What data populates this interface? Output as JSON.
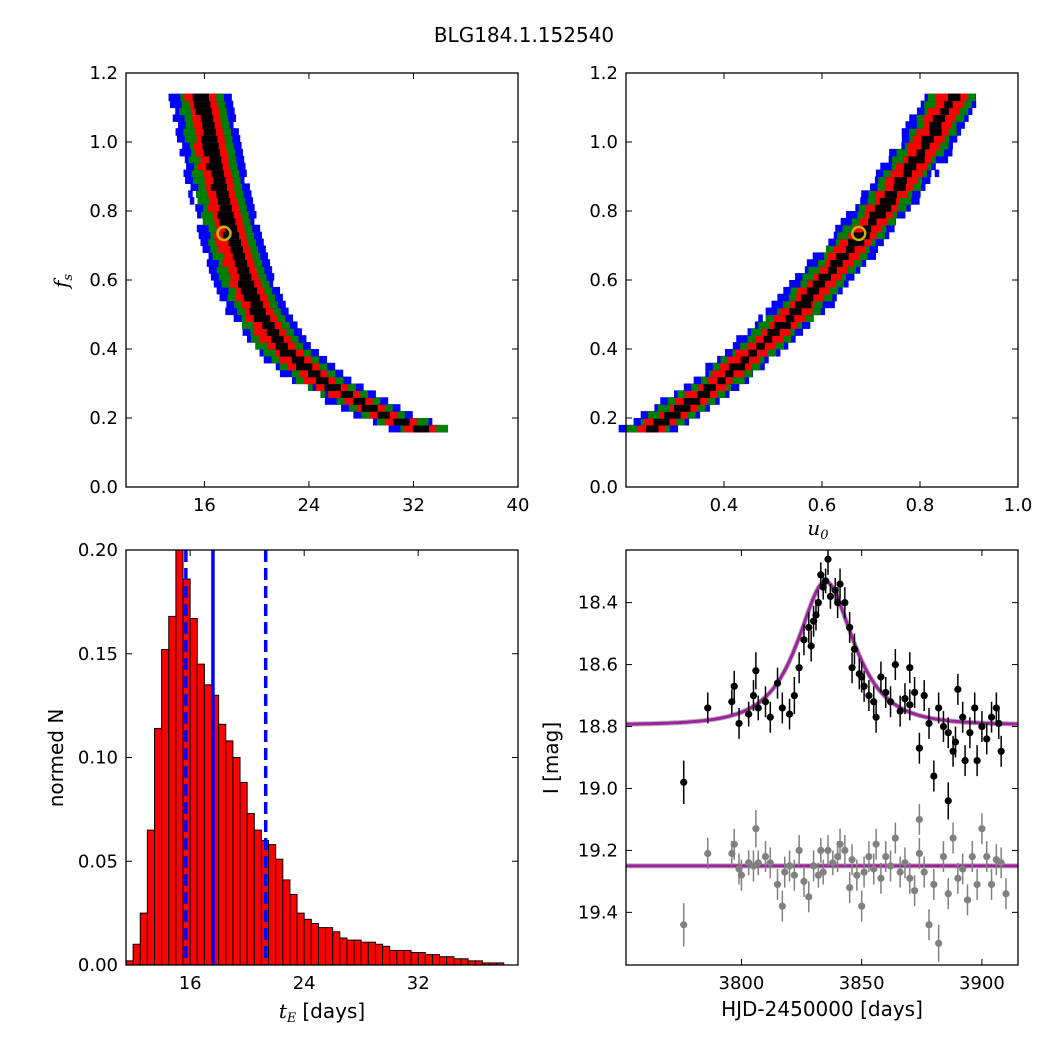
{
  "figure": {
    "title": "BLG184.1.152540"
  },
  "chart_data": [
    {
      "id": "fs_vs_tE",
      "type": "heatmap",
      "xlim": [
        10,
        40
      ],
      "ylim": [
        0.0,
        1.2
      ],
      "xticks": [
        16,
        24,
        32,
        40
      ],
      "yticks": [
        0.0,
        0.2,
        0.4,
        0.6,
        0.8,
        1.0,
        1.2
      ],
      "xlabel": "",
      "ylabel": "f_s",
      "levels": [
        "blue",
        "green",
        "red",
        "black"
      ],
      "colors": {
        "blue": "#0000ff",
        "green": "#008000",
        "red": "#ff0000",
        "black": "#000000",
        "marker": "#c8b400"
      },
      "band": {
        "x_at_y": [
          [
            0.16,
            32.5
          ],
          [
            0.2,
            29.5
          ],
          [
            0.3,
            24.8
          ],
          [
            0.4,
            21.7
          ],
          [
            0.5,
            20.0
          ],
          [
            0.6,
            18.9
          ],
          [
            0.7,
            18.1
          ],
          [
            0.8,
            17.4
          ],
          [
            0.9,
            16.8
          ],
          [
            1.0,
            16.3
          ],
          [
            1.13,
            15.6
          ]
        ],
        "half_width_tE": {
          "black": 0.55,
          "red": 1.2,
          "green": 1.8,
          "blue": 2.4
        },
        "y_range": [
          0.16,
          1.13
        ]
      },
      "best_fit": {
        "x": 17.5,
        "y": 0.735
      }
    },
    {
      "id": "fs_vs_u0",
      "type": "heatmap",
      "xlim": [
        0.2,
        1.0
      ],
      "ylim": [
        0.0,
        1.2
      ],
      "xticks": [
        0.4,
        0.6,
        0.8,
        1.0
      ],
      "yticks": [
        0.0,
        0.2,
        0.4,
        0.6,
        0.8,
        1.0,
        1.2
      ],
      "xlabel": "u_0",
      "ylabel": "",
      "band": {
        "x_at_y": [
          [
            0.16,
            0.245
          ],
          [
            0.2,
            0.29
          ],
          [
            0.3,
            0.39
          ],
          [
            0.4,
            0.47
          ],
          [
            0.5,
            0.545
          ],
          [
            0.6,
            0.605
          ],
          [
            0.7,
            0.665
          ],
          [
            0.8,
            0.72
          ],
          [
            0.9,
            0.77
          ],
          [
            1.0,
            0.815
          ],
          [
            1.13,
            0.865
          ]
        ],
        "half_width_u0": {
          "black": 0.012,
          "red": 0.03,
          "green": 0.045,
          "blue": 0.06
        },
        "y_range": [
          0.16,
          1.13
        ]
      },
      "best_fit": {
        "x": 0.675,
        "y": 0.735
      }
    },
    {
      "id": "tE_histogram",
      "type": "bar",
      "xlim": [
        11.5,
        39
      ],
      "ylim": [
        0.0,
        0.2
      ],
      "xticks": [
        16,
        24,
        32
      ],
      "yticks": [
        0.0,
        0.05,
        0.1,
        0.15,
        0.2
      ],
      "ytick_labels": [
        "0.00",
        "0.05",
        "0.10",
        "0.15",
        "0.20"
      ],
      "xlabel_math": "t_E",
      "xlabel_suffix": "[days]",
      "ylabel": "normed N",
      "bin_start": 11.5,
      "bin_width": 0.5,
      "values": [
        0.002,
        0.01,
        0.025,
        0.065,
        0.114,
        0.152,
        0.168,
        0.2,
        0.186,
        0.167,
        0.145,
        0.135,
        0.13,
        0.116,
        0.108,
        0.1,
        0.088,
        0.073,
        0.065,
        0.06,
        0.058,
        0.051,
        0.041,
        0.034,
        0.025,
        0.022,
        0.02,
        0.018,
        0.018,
        0.016,
        0.013,
        0.012,
        0.012,
        0.011,
        0.011,
        0.01,
        0.009,
        0.007,
        0.007,
        0.007,
        0.006,
        0.006,
        0.005,
        0.005,
        0.004,
        0.004,
        0.003,
        0.003,
        0.002,
        0.002,
        0.001,
        0.001,
        0.001,
        0.0,
        0.0
      ],
      "bar_color": "#ff0000",
      "median_tE": 17.6,
      "interval_tE": [
        15.7,
        21.3
      ],
      "line_color": "#0000ff"
    },
    {
      "id": "light_curve",
      "type": "scatter",
      "xlim": [
        3752,
        3915
      ],
      "ylim": [
        19.57,
        18.23
      ],
      "xticks": [
        3800,
        3850,
        3900
      ],
      "yticks": [
        18.4,
        18.6,
        18.8,
        19.0,
        19.2,
        19.4
      ],
      "xlabel": "HJD-2450000 [days]",
      "ylabel": "I [mag]",
      "model": {
        "t0": 3835,
        "tE": 17.6,
        "u0": 0.675,
        "fs": 0.735,
        "baseline": 18.795,
        "color": "#a020a0"
      },
      "residual_baseline": 19.25,
      "series": [
        {
          "color": "#000000",
          "points": [
            [
              3776,
              18.98,
              0.07
            ],
            [
              3786,
              18.74,
              0.05
            ],
            [
              3796,
              18.72,
              0.04
            ],
            [
              3797,
              18.67,
              0.05
            ],
            [
              3799,
              18.79,
              0.05
            ],
            [
              3803,
              18.76,
              0.04
            ],
            [
              3805,
              18.7,
              0.05
            ],
            [
              3806,
              18.62,
              0.06
            ],
            [
              3807,
              18.74,
              0.04
            ],
            [
              3810,
              18.72,
              0.05
            ],
            [
              3812,
              18.77,
              0.05
            ],
            [
              3815,
              18.66,
              0.05
            ],
            [
              3817,
              18.74,
              0.05
            ],
            [
              3820,
              18.76,
              0.05
            ],
            [
              3822,
              18.7,
              0.06
            ],
            [
              3824,
              18.61,
              0.05
            ],
            [
              3826,
              18.52,
              0.05
            ],
            [
              3828,
              18.48,
              0.05
            ],
            [
              3829,
              18.54,
              0.05
            ],
            [
              3830,
              18.46,
              0.05
            ],
            [
              3831,
              18.44,
              0.05
            ],
            [
              3832,
              18.4,
              0.04
            ],
            [
              3833,
              18.31,
              0.04
            ],
            [
              3834,
              18.35,
              0.04
            ],
            [
              3835,
              18.33,
              0.04
            ],
            [
              3836,
              18.26,
              0.05
            ],
            [
              3837,
              18.38,
              0.04
            ],
            [
              3839,
              18.36,
              0.04
            ],
            [
              3840,
              18.4,
              0.05
            ],
            [
              3841,
              18.34,
              0.05
            ],
            [
              3843,
              18.4,
              0.05
            ],
            [
              3845,
              18.48,
              0.05
            ],
            [
              3846,
              18.61,
              0.05
            ],
            [
              3847,
              18.55,
              0.05
            ],
            [
              3849,
              18.63,
              0.05
            ],
            [
              3850,
              18.64,
              0.05
            ],
            [
              3851,
              18.67,
              0.05
            ],
            [
              3853,
              18.7,
              0.05
            ],
            [
              3855,
              18.72,
              0.05
            ],
            [
              3856,
              18.77,
              0.05
            ],
            [
              3858,
              18.64,
              0.05
            ],
            [
              3860,
              18.69,
              0.05
            ],
            [
              3862,
              18.72,
              0.05
            ],
            [
              3864,
              18.6,
              0.05
            ],
            [
              3866,
              18.75,
              0.05
            ],
            [
              3868,
              18.71,
              0.05
            ],
            [
              3870,
              18.61,
              0.05
            ],
            [
              3872,
              18.69,
              0.05
            ],
            [
              3874,
              18.87,
              0.05
            ],
            [
              3876,
              18.7,
              0.05
            ],
            [
              3878,
              18.79,
              0.05
            ],
            [
              3880,
              18.96,
              0.05
            ],
            [
              3882,
              18.74,
              0.05
            ],
            [
              3884,
              18.8,
              0.05
            ],
            [
              3886,
              18.82,
              0.05
            ],
            [
              3888,
              18.88,
              0.05
            ],
            [
              3889,
              18.85,
              0.05
            ],
            [
              3890,
              18.68,
              0.05
            ],
            [
              3892,
              18.77,
              0.05
            ],
            [
              3893,
              18.91,
              0.05
            ],
            [
              3895,
              18.82,
              0.05
            ],
            [
              3897,
              18.74,
              0.05
            ],
            [
              3898,
              18.91,
              0.05
            ],
            [
              3900,
              18.8,
              0.05
            ],
            [
              3902,
              18.84,
              0.05
            ],
            [
              3904,
              18.77,
              0.05
            ],
            [
              3906,
              18.74,
              0.05
            ],
            [
              3907,
              18.79,
              0.05
            ],
            [
              3908,
              18.88,
              0.05
            ],
            [
              3886,
              19.04,
              0.06
            ],
            [
              3870,
              18.73,
              0.05
            ]
          ]
        },
        {
          "color": "#808080",
          "points": [
            [
              3776,
              19.44,
              0.07
            ],
            [
              3786,
              19.21,
              0.05
            ],
            [
              3796,
              19.21,
              0.04
            ],
            [
              3797,
              19.18,
              0.05
            ],
            [
              3799,
              19.26,
              0.05
            ],
            [
              3800,
              19.28,
              0.05
            ],
            [
              3803,
              19.24,
              0.04
            ],
            [
              3805,
              19.25,
              0.05
            ],
            [
              3806,
              19.13,
              0.06
            ],
            [
              3807,
              19.24,
              0.04
            ],
            [
              3810,
              19.22,
              0.05
            ],
            [
              3812,
              19.24,
              0.05
            ],
            [
              3815,
              19.31,
              0.05
            ],
            [
              3817,
              19.38,
              0.05
            ],
            [
              3818,
              19.27,
              0.05
            ],
            [
              3820,
              19.25,
              0.05
            ],
            [
              3822,
              19.28,
              0.05
            ],
            [
              3824,
              19.2,
              0.05
            ],
            [
              3826,
              19.3,
              0.05
            ],
            [
              3828,
              19.35,
              0.05
            ],
            [
              3830,
              19.25,
              0.05
            ],
            [
              3832,
              19.28,
              0.04
            ],
            [
              3833,
              19.2,
              0.04
            ],
            [
              3834,
              19.27,
              0.04
            ],
            [
              3836,
              19.2,
              0.05
            ],
            [
              3838,
              19.24,
              0.04
            ],
            [
              3840,
              19.22,
              0.05
            ],
            [
              3841,
              19.18,
              0.05
            ],
            [
              3843,
              19.2,
              0.05
            ],
            [
              3845,
              19.32,
              0.05
            ],
            [
              3846,
              19.23,
              0.05
            ],
            [
              3848,
              19.28,
              0.05
            ],
            [
              3850,
              19.38,
              0.05
            ],
            [
              3851,
              19.27,
              0.05
            ],
            [
              3853,
              19.22,
              0.05
            ],
            [
              3855,
              19.26,
              0.05
            ],
            [
              3856,
              19.18,
              0.05
            ],
            [
              3858,
              19.29,
              0.05
            ],
            [
              3860,
              19.22,
              0.05
            ],
            [
              3862,
              19.25,
              0.05
            ],
            [
              3864,
              19.16,
              0.05
            ],
            [
              3866,
              19.27,
              0.05
            ],
            [
              3868,
              19.24,
              0.05
            ],
            [
              3870,
              19.29,
              0.05
            ],
            [
              3872,
              19.33,
              0.05
            ],
            [
              3874,
              19.21,
              0.05
            ],
            [
              3876,
              19.27,
              0.05
            ],
            [
              3878,
              19.44,
              0.05
            ],
            [
              3880,
              19.31,
              0.05
            ],
            [
              3882,
              19.5,
              0.06
            ],
            [
              3884,
              19.22,
              0.05
            ],
            [
              3886,
              19.34,
              0.05
            ],
            [
              3888,
              19.16,
              0.05
            ],
            [
              3890,
              19.29,
              0.05
            ],
            [
              3892,
              19.26,
              0.05
            ],
            [
              3894,
              19.36,
              0.05
            ],
            [
              3896,
              19.22,
              0.05
            ],
            [
              3898,
              19.31,
              0.05
            ],
            [
              3900,
              19.13,
              0.05
            ],
            [
              3902,
              19.22,
              0.05
            ],
            [
              3904,
              19.31,
              0.05
            ],
            [
              3906,
              19.23,
              0.05
            ],
            [
              3908,
              19.24,
              0.05
            ],
            [
              3910,
              19.34,
              0.05
            ],
            [
              3874,
              19.1,
              0.05
            ]
          ]
        }
      ]
    }
  ]
}
